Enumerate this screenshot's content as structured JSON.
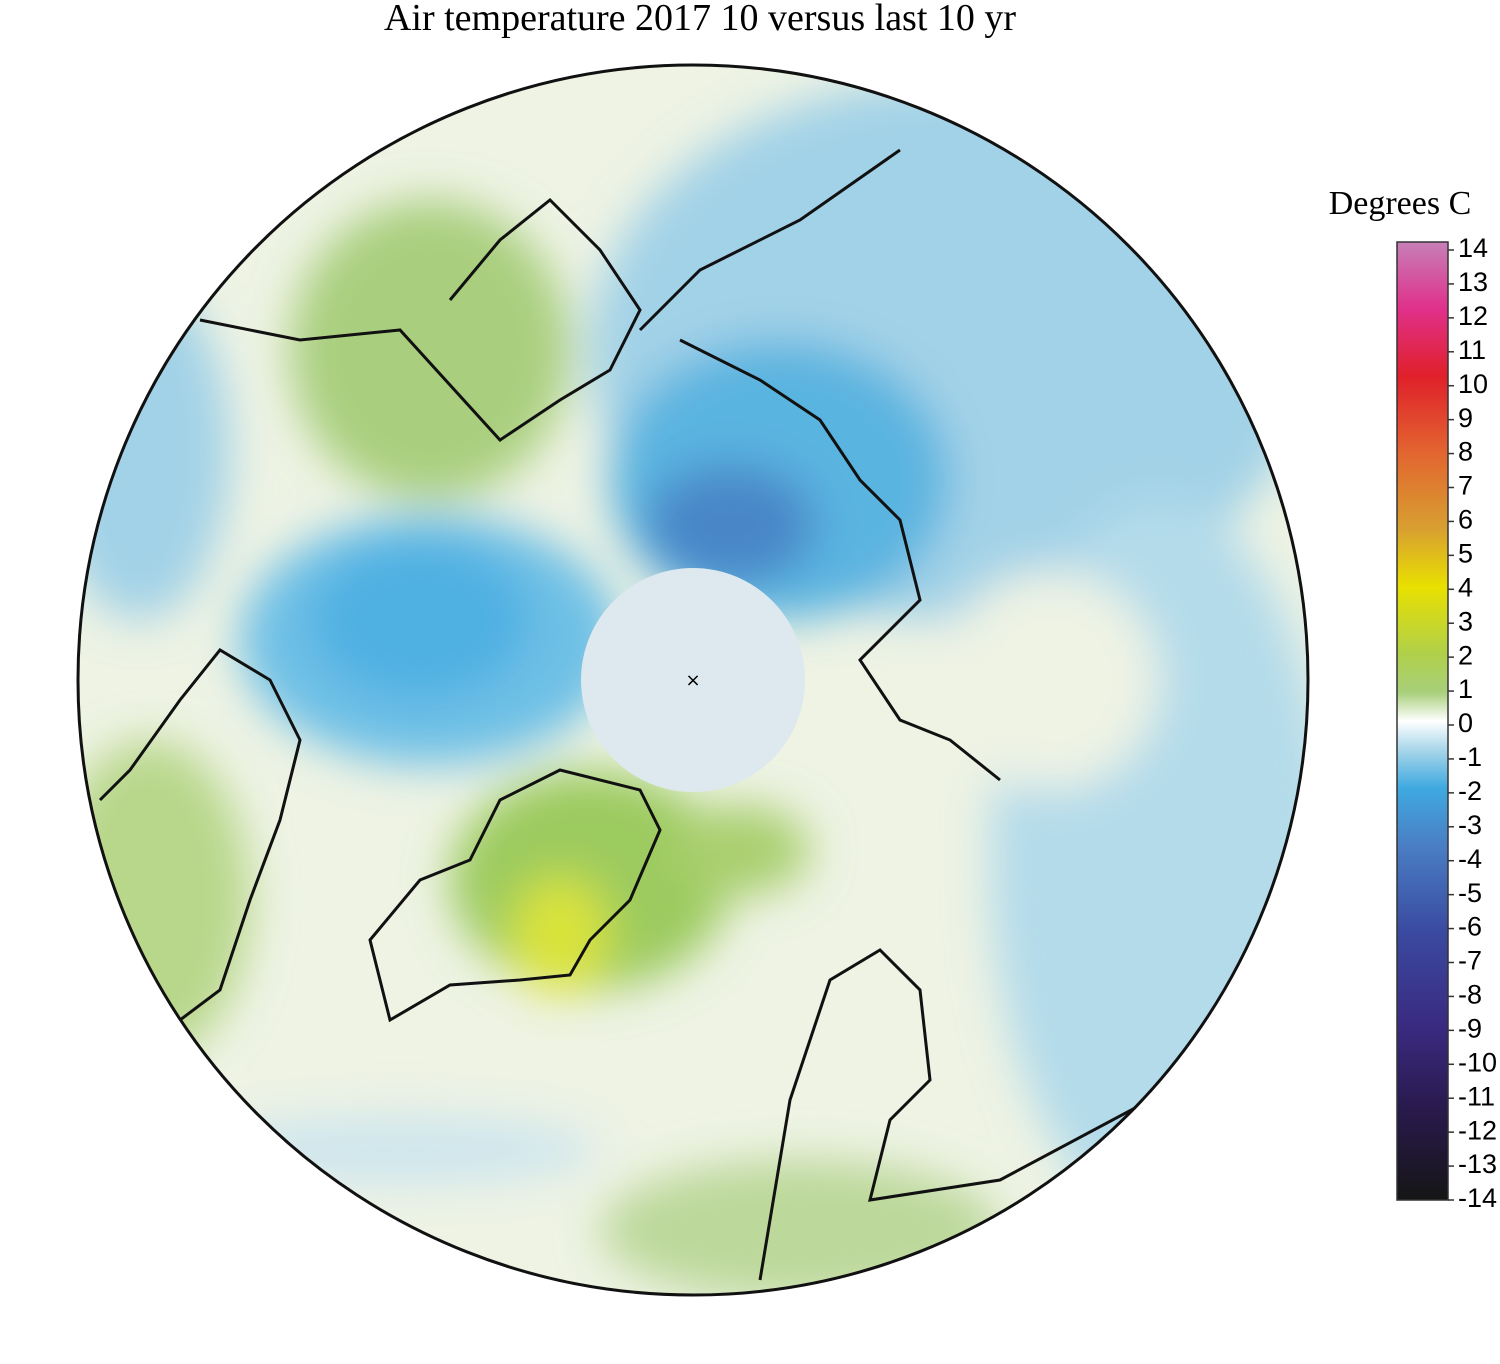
{
  "title": "Air temperature 2017 10 versus last 10 yr",
  "colorbar": {
    "label": "Degrees C",
    "ticks": [
      14,
      13,
      12,
      11,
      10,
      9,
      8,
      7,
      6,
      5,
      4,
      3,
      2,
      1,
      0,
      -1,
      -2,
      -3,
      -4,
      -5,
      -6,
      -7,
      -8,
      -9,
      -10,
      -11,
      -12,
      -13,
      -14
    ]
  }
}
